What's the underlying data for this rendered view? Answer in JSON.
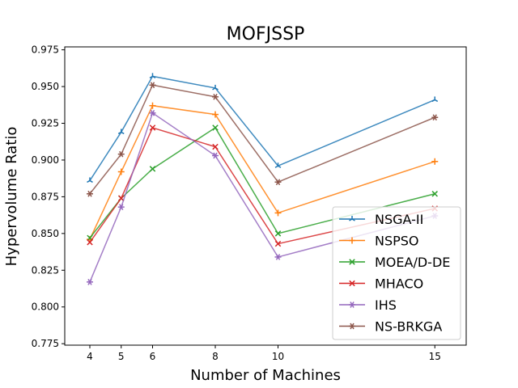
{
  "chart_data": {
    "type": "line",
    "title": "MOFJSSP",
    "xlabel": "Number of Machines",
    "ylabel": "Hypervolume Ratio",
    "x": [
      4,
      5,
      6,
      8,
      10,
      15
    ],
    "x_ticks": [
      "4",
      "5",
      "6",
      "8",
      "10",
      "15"
    ],
    "xlim": [
      3.2,
      16.0
    ],
    "ylim": [
      0.774,
      0.977
    ],
    "y_ticks": [
      "0.775",
      "0.800",
      "0.825",
      "0.850",
      "0.875",
      "0.900",
      "0.925",
      "0.950",
      "0.975"
    ],
    "grid": false,
    "legend_position": "lower-right",
    "series": [
      {
        "name": "NSGA-II",
        "color": "#1f77b4",
        "marker": "tri_up",
        "values": [
          0.886,
          0.919,
          0.957,
          0.949,
          0.896,
          0.941
        ]
      },
      {
        "name": "NSPSO",
        "color": "#ff7f0e",
        "marker": "plus",
        "values": [
          0.846,
          0.892,
          0.937,
          0.931,
          0.864,
          0.899
        ]
      },
      {
        "name": "MOEA/D-DE",
        "color": "#2ca02c",
        "marker": "x",
        "values": [
          0.847,
          0.874,
          0.894,
          0.922,
          0.85,
          0.877
        ]
      },
      {
        "name": "MHACO",
        "color": "#d62728",
        "marker": "x",
        "values": [
          0.844,
          0.874,
          0.922,
          0.909,
          0.843,
          0.867
        ]
      },
      {
        "name": "IHS",
        "color": "#9467bd",
        "marker": "asterisk",
        "values": [
          0.817,
          0.868,
          0.932,
          0.903,
          0.834,
          0.862
        ]
      },
      {
        "name": "NS-BRKGA",
        "color": "#8c564b",
        "marker": "asterisk",
        "values": [
          0.877,
          0.904,
          0.951,
          0.943,
          0.885,
          0.929
        ]
      }
    ]
  }
}
